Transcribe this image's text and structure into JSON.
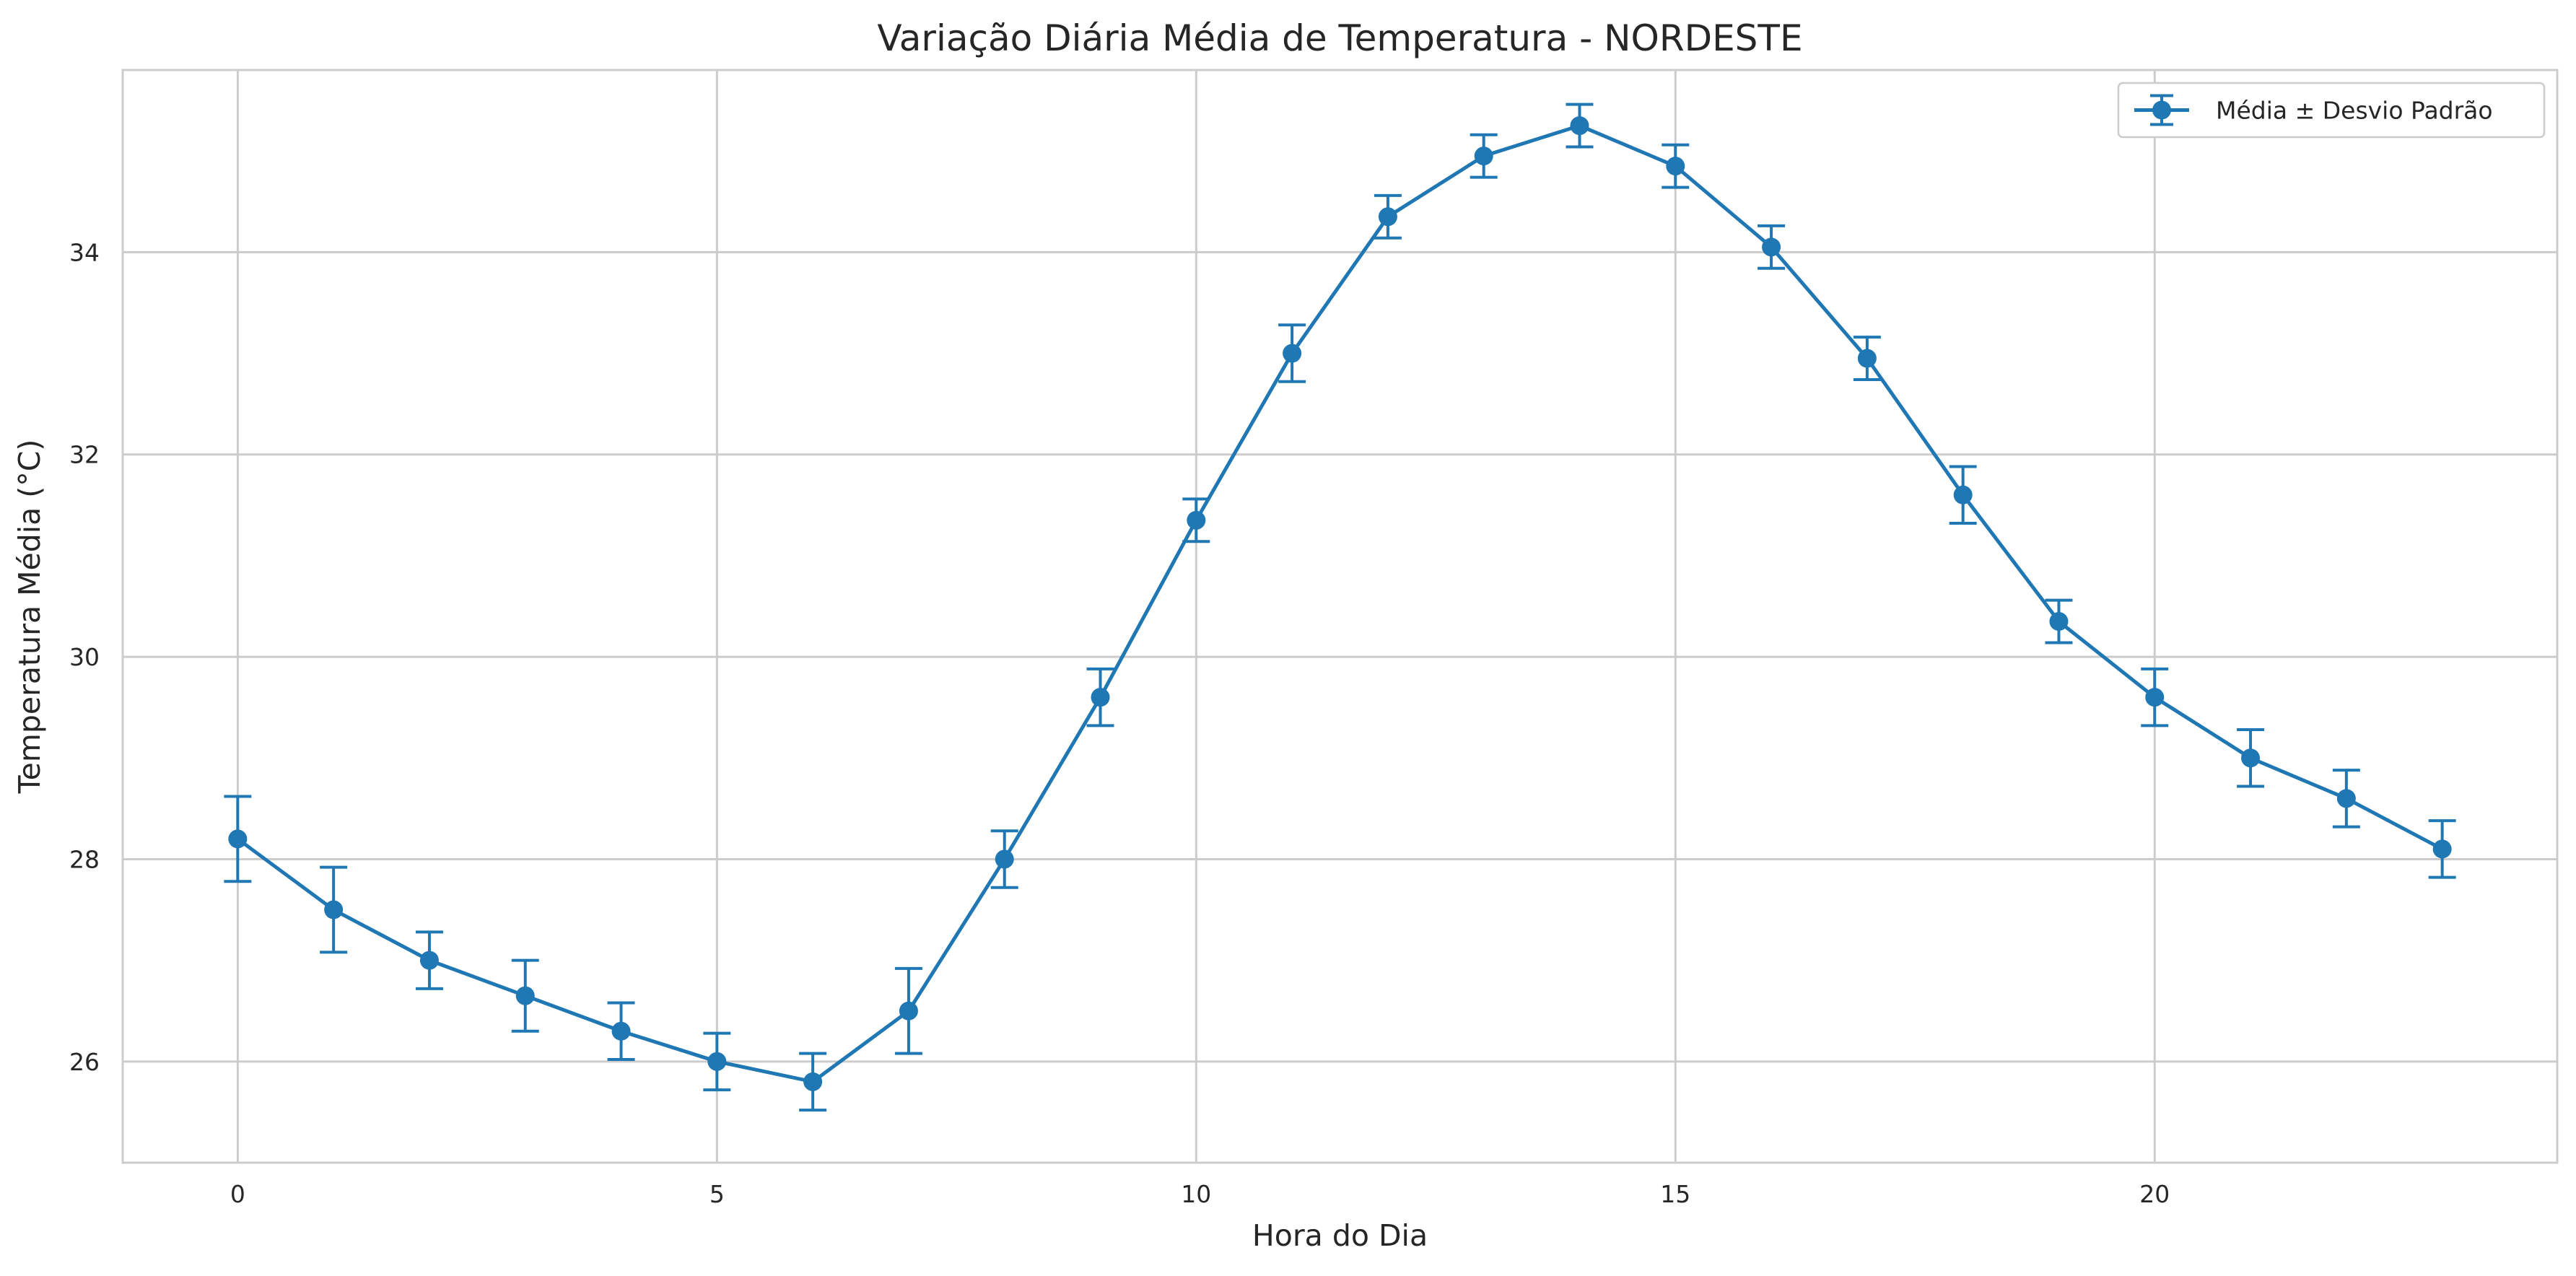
{
  "chart_data": {
    "type": "line",
    "title": "Variação Diária Média de Temperatura - NORDESTE",
    "xlabel": "Hora do Dia",
    "ylabel": "Temperatura Média (°C)",
    "xlim": [
      -1.2,
      24.2
    ],
    "ylim": [
      25.0,
      35.8
    ],
    "xticks": [
      0,
      5,
      10,
      15,
      20
    ],
    "yticks": [
      26,
      28,
      30,
      32,
      34
    ],
    "grid": true,
    "legend_position": "top-right",
    "color": "#1f77b4",
    "series": [
      {
        "name": "Média ± Desvio Padrão",
        "x": [
          0,
          1,
          2,
          3,
          4,
          5,
          6,
          7,
          8,
          9,
          10,
          11,
          12,
          13,
          14,
          15,
          16,
          17,
          18,
          19,
          20,
          21,
          22,
          23
        ],
        "y": [
          28.2,
          27.5,
          27.0,
          26.65,
          26.3,
          26.0,
          25.8,
          26.5,
          28.0,
          29.6,
          31.35,
          33.0,
          34.35,
          34.95,
          35.25,
          34.85,
          34.05,
          32.95,
          31.6,
          30.35,
          29.6,
          29.0,
          28.6,
          28.1
        ],
        "err": [
          0.42,
          0.42,
          0.28,
          0.35,
          0.28,
          0.28,
          0.28,
          0.42,
          0.28,
          0.28,
          0.21,
          0.28,
          0.21,
          0.21,
          0.21,
          0.21,
          0.21,
          0.21,
          0.28,
          0.21,
          0.28,
          0.28,
          0.28,
          0.28
        ]
      }
    ]
  }
}
